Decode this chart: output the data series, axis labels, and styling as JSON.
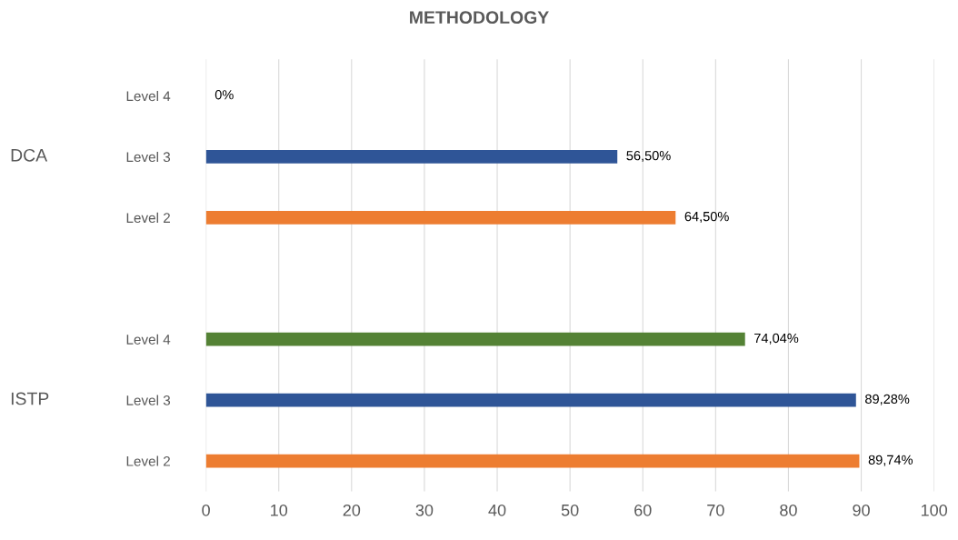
{
  "chart_data": {
    "type": "bar",
    "orientation": "horizontal",
    "title": "METHODOLOGY",
    "categories": [
      "Level 4",
      "Level 3",
      "Level 2",
      null,
      "Level 4",
      "Level 3",
      "Level 2"
    ],
    "values": [
      0,
      56.5,
      64.5,
      null,
      74.04,
      89.28,
      89.74
    ],
    "colors": [
      "#548235",
      "#2f5597",
      "#ed7d31",
      "#ffffff",
      "#548235",
      "#2f5597",
      "#ed7d31"
    ],
    "value_labels": [
      "0%",
      "56,50%",
      "64,50%",
      null,
      "74,04%",
      "89,28%",
      "89,74%"
    ],
    "annotations": [
      "DCA",
      "ISTP"
    ],
    "xlim": [
      0,
      100
    ],
    "xticks": [
      0,
      10,
      20,
      30,
      40,
      50,
      60,
      70,
      80,
      90,
      100
    ],
    "grid": "x",
    "legend": false
  }
}
